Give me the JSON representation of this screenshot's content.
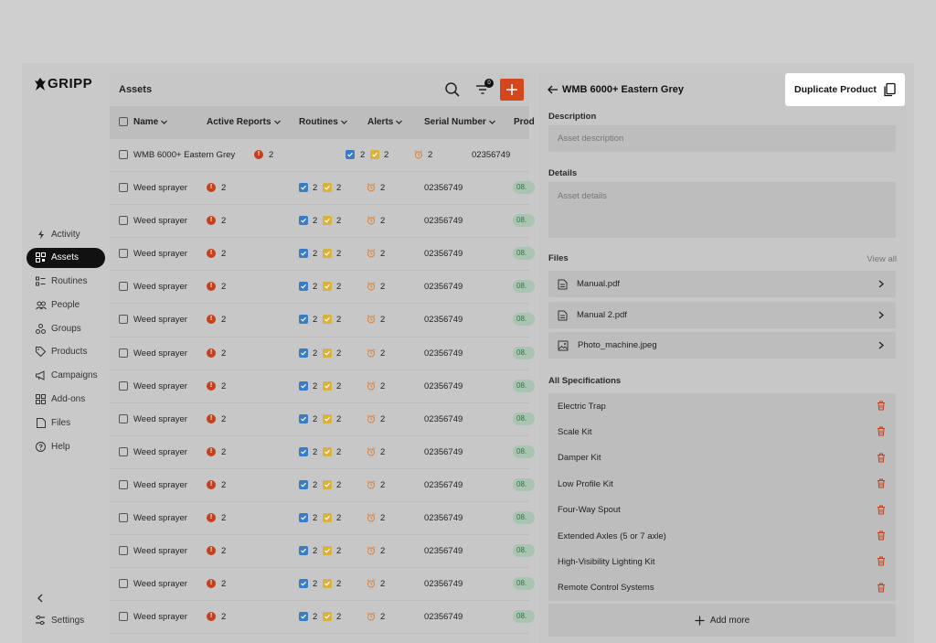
{
  "brand": {
    "name": "GRIPP"
  },
  "sidebar": {
    "items": [
      {
        "label": "Activity",
        "icon": "bolt-icon",
        "active": false
      },
      {
        "label": "Assets",
        "icon": "qr-icon",
        "active": true
      },
      {
        "label": "Routines",
        "icon": "routines-icon",
        "active": false
      },
      {
        "label": "People",
        "icon": "people-icon",
        "active": false
      },
      {
        "label": "Groups",
        "icon": "groups-icon",
        "active": false
      },
      {
        "label": "Products",
        "icon": "tag-icon",
        "active": false
      },
      {
        "label": "Campaigns",
        "icon": "megaphone-icon",
        "active": false
      },
      {
        "label": "Add-ons",
        "icon": "grid-icon",
        "active": false
      },
      {
        "label": "Files",
        "icon": "file-icon",
        "active": false
      },
      {
        "label": "Help",
        "icon": "help-icon",
        "active": false
      }
    ],
    "settings_label": "Settings"
  },
  "list": {
    "title": "Assets",
    "filter_count": "0",
    "columns": [
      "Name",
      "Active Reports",
      "Routines",
      "Alerts",
      "Serial Number",
      "Prod"
    ],
    "first_row": {
      "name": "WMB 6000+ Eastern Grey",
      "reports": "2",
      "routines_a": "2",
      "routines_b": "2",
      "alerts": "2",
      "serial": "02356749"
    },
    "rows": [
      {
        "name": "Weed sprayer",
        "reports": "2",
        "routines_a": "2",
        "routines_b": "2",
        "alerts": "2",
        "serial": "02356749",
        "prod": "08."
      },
      {
        "name": "Weed sprayer",
        "reports": "2",
        "routines_a": "2",
        "routines_b": "2",
        "alerts": "2",
        "serial": "02356749",
        "prod": "08."
      },
      {
        "name": "Weed sprayer",
        "reports": "2",
        "routines_a": "2",
        "routines_b": "2",
        "alerts": "2",
        "serial": "02356749",
        "prod": "08."
      },
      {
        "name": "Weed sprayer",
        "reports": "2",
        "routines_a": "2",
        "routines_b": "2",
        "alerts": "2",
        "serial": "02356749",
        "prod": "08."
      },
      {
        "name": "Weed sprayer",
        "reports": "2",
        "routines_a": "2",
        "routines_b": "2",
        "alerts": "2",
        "serial": "02356749",
        "prod": "08."
      },
      {
        "name": "Weed sprayer",
        "reports": "2",
        "routines_a": "2",
        "routines_b": "2",
        "alerts": "2",
        "serial": "02356749",
        "prod": "08."
      },
      {
        "name": "Weed sprayer",
        "reports": "2",
        "routines_a": "2",
        "routines_b": "2",
        "alerts": "2",
        "serial": "02356749",
        "prod": "08."
      },
      {
        "name": "Weed sprayer",
        "reports": "2",
        "routines_a": "2",
        "routines_b": "2",
        "alerts": "2",
        "serial": "02356749",
        "prod": "08."
      },
      {
        "name": "Weed sprayer",
        "reports": "2",
        "routines_a": "2",
        "routines_b": "2",
        "alerts": "2",
        "serial": "02356749",
        "prod": "08."
      },
      {
        "name": "Weed sprayer",
        "reports": "2",
        "routines_a": "2",
        "routines_b": "2",
        "alerts": "2",
        "serial": "02356749",
        "prod": "08."
      },
      {
        "name": "Weed sprayer",
        "reports": "2",
        "routines_a": "2",
        "routines_b": "2",
        "alerts": "2",
        "serial": "02356749",
        "prod": "08."
      },
      {
        "name": "Weed sprayer",
        "reports": "2",
        "routines_a": "2",
        "routines_b": "2",
        "alerts": "2",
        "serial": "02356749",
        "prod": "08."
      },
      {
        "name": "Weed sprayer",
        "reports": "2",
        "routines_a": "2",
        "routines_b": "2",
        "alerts": "2",
        "serial": "02356749",
        "prod": "08."
      },
      {
        "name": "Weed sprayer",
        "reports": "2",
        "routines_a": "2",
        "routines_b": "2",
        "alerts": "2",
        "serial": "02356749",
        "prod": "08."
      }
    ]
  },
  "detail": {
    "title": "WMB 6000+ Eastern Grey",
    "duplicate_label": "Duplicate Product",
    "description_label": "Description",
    "description_placeholder": "Asset description",
    "details_label": "Details",
    "details_placeholder": "Asset details",
    "files_label": "Files",
    "view_all": "View all",
    "files": [
      {
        "name": "Manual.pdf",
        "icon": "document-icon"
      },
      {
        "name": "Manual 2.pdf",
        "icon": "document-icon"
      },
      {
        "name": "Photo_machine.jpeg",
        "icon": "image-icon"
      }
    ],
    "specs_label": "All Specifications",
    "specs": [
      "Electric Trap",
      "Scale Kit",
      "Damper Kit",
      "Low Profile Kit",
      "Four-Way Spout",
      "Extended Axles (5 or 7 axle)",
      "High-Visibility Lighting Kit",
      "Remote Control Systems"
    ],
    "add_more": "Add more"
  },
  "colors": {
    "accent": "#d4471c",
    "alert": "#c5401c",
    "routine_blue": "#3a7bc8",
    "routine_yellow": "#d9b23b",
    "trash": "#c5401c"
  }
}
